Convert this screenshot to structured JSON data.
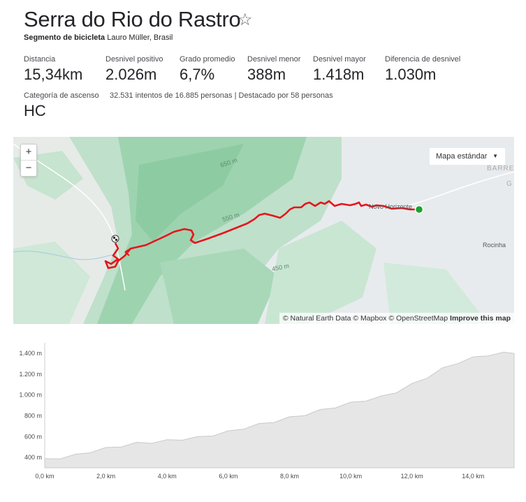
{
  "header": {
    "title": "Serra do Rio do Rastro",
    "star_icon": "☆",
    "segment_type": "Segmento de bicicleta",
    "location": "Lauro Müller, Brasil"
  },
  "stats": [
    {
      "label": "Distancia",
      "value": "15,34km"
    },
    {
      "label": "Desnivel positivo",
      "value": "2.026m"
    },
    {
      "label": "Grado promedio",
      "value": "6,7%"
    },
    {
      "label": "Desnivel menor",
      "value": "388m"
    },
    {
      "label": "Desnivel mayor",
      "value": "1.418m"
    },
    {
      "label": "Diferencia de desnivel",
      "value": "1.030m"
    }
  ],
  "category": {
    "label": "Categoría de ascenso",
    "value": "HC"
  },
  "attempts_text": "32.531 intentos de 16.885 personas | Destacado por 58 personas",
  "map": {
    "zoom_in": "+",
    "zoom_out": "−",
    "style_selector": "Mapa estándar",
    "attribution_text": "© Natural Earth Data © Mapbox © OpenStreetMap",
    "improve_link": "Improve this map",
    "labels": {
      "novo_horizonte": "Novo Horizonte",
      "rocinha": "Rocinha",
      "barre": "BARRE",
      "g": "G",
      "contour_650": "650 m",
      "contour_550": "550 m",
      "contour_450": "450 m"
    },
    "route_color": "#e8141b",
    "start_color": "#16a52e"
  },
  "chart_data": {
    "type": "area",
    "x_tick_labels": [
      "0,0 km",
      "2,0 km",
      "4,0 km",
      "6,0 km",
      "8,0 km",
      "10,0 km",
      "12,0 km",
      "14,0 km"
    ],
    "y_tick_labels": [
      "400 m",
      "600 m",
      "800 m",
      "1.000 m",
      "1.200 m",
      "1.400 m"
    ],
    "xlim": [
      0,
      15.34
    ],
    "ylim": [
      300,
      1500
    ],
    "x": [
      0,
      0.5,
      1,
      1.5,
      2,
      2.5,
      3,
      3.5,
      4,
      4.5,
      5,
      5.5,
      6,
      6.5,
      7,
      7.5,
      8,
      8.5,
      9,
      9.5,
      10,
      10.5,
      11,
      11.5,
      12,
      12.5,
      13,
      13.5,
      14,
      14.5,
      15,
      15.34
    ],
    "values": [
      388,
      405,
      430,
      465,
      495,
      520,
      545,
      555,
      570,
      585,
      600,
      625,
      655,
      690,
      725,
      755,
      790,
      820,
      860,
      895,
      930,
      960,
      990,
      1040,
      1110,
      1180,
      1260,
      1320,
      1365,
      1395,
      1410,
      1418
    ],
    "fill_color": "#e6e6e6",
    "line_color": "#c9c9c9"
  }
}
